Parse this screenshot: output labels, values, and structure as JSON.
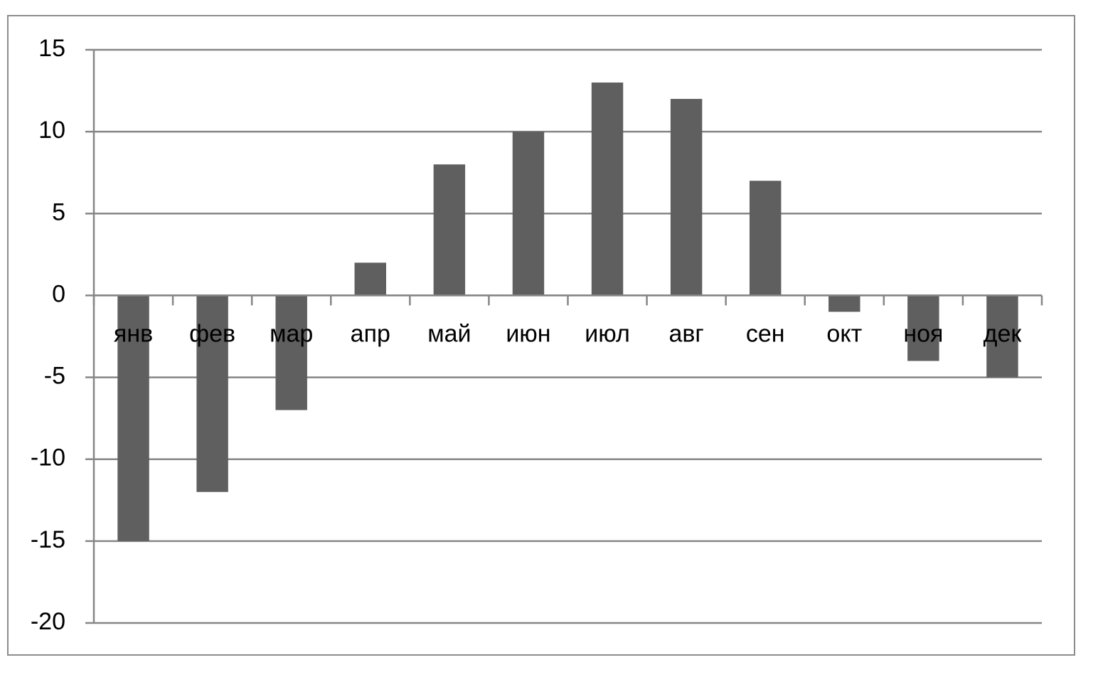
{
  "chart_data": {
    "type": "bar",
    "categories": [
      "янв",
      "фев",
      "мар",
      "апр",
      "май",
      "июн",
      "июл",
      "авг",
      "сен",
      "окт",
      "ноя",
      "дек"
    ],
    "values": [
      -15,
      -12,
      -7,
      2,
      8,
      10,
      13,
      12,
      7,
      -1,
      -4,
      -5
    ],
    "color": "#5f5f5f",
    "ylim": [
      -20,
      15
    ],
    "yticks": [
      -20,
      -15,
      -10,
      -5,
      0,
      5,
      10,
      15
    ],
    "grid": true
  }
}
